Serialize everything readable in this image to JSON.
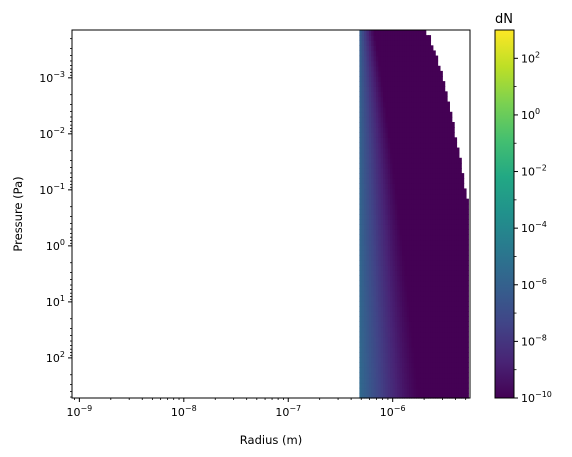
{
  "chart_data": {
    "type": "heatmap",
    "xlabel": "Radius (m)",
    "ylabel": "Pressure (Pa)",
    "x_scale": "log",
    "y_scale": "log",
    "y_inverted": true,
    "xlim": [
      8.5e-10,
      5.5e-06
    ],
    "ylim": [
      520,
      0.00014
    ],
    "x_ticks": [
      {
        "value": 1e-09,
        "base": "10",
        "exp": "−9"
      },
      {
        "value": 1e-08,
        "base": "10",
        "exp": "−8"
      },
      {
        "value": 1e-07,
        "base": "10",
        "exp": "−7"
      },
      {
        "value": 1e-06,
        "base": "10",
        "exp": "−6"
      }
    ],
    "y_ticks": [
      {
        "value": 0.001,
        "base": "10",
        "exp": "−3"
      },
      {
        "value": 0.01,
        "base": "10",
        "exp": "−2"
      },
      {
        "value": 0.1,
        "base": "10",
        "exp": "−1"
      },
      {
        "value": 1,
        "base": "10",
        "exp": "0"
      },
      {
        "value": 10,
        "base": "10",
        "exp": "1"
      },
      {
        "value": 100,
        "base": "10",
        "exp": "2"
      }
    ],
    "grid": false,
    "colormap": "viridis",
    "colorbar": {
      "title": "dN",
      "scale": "log",
      "range": [
        1e-10,
        1000
      ],
      "ticks": [
        {
          "value": 1e-10,
          "base": "10",
          "exp": "−10"
        },
        {
          "value": 1e-08,
          "base": "10",
          "exp": "−8"
        },
        {
          "value": 1e-06,
          "base": "10",
          "exp": "−6"
        },
        {
          "value": 0.0001,
          "base": "10",
          "exp": "−4"
        },
        {
          "value": 0.01,
          "base": "10",
          "exp": "−2"
        },
        {
          "value": 1,
          "base": "10",
          "exp": "0"
        },
        {
          "value": 100,
          "base": "10",
          "exp": "2"
        }
      ]
    },
    "data_region": {
      "radius_min": 4.8e-07,
      "radius_max": 5.3e-06,
      "pressure_range": [
        520,
        0.00014
      ],
      "dN_at_radius_min": 3e-06,
      "dN_falloff_radius_top": 7e-07,
      "dN_falloff_radius_bottom": 1.8e-06,
      "dN_floor": 1e-10,
      "upper_edge_profile": [
        {
          "radius": 2e-06,
          "pressure": 0.00014
        },
        {
          "radius": 2.25e-06,
          "pressure": 0.00018
        },
        {
          "radius": 2.5e-06,
          "pressure": 0.00035
        },
        {
          "radius": 2.8e-06,
          "pressure": 0.0006
        },
        {
          "radius": 3.1e-06,
          "pressure": 0.0013
        },
        {
          "radius": 3.5e-06,
          "pressure": 0.0033
        },
        {
          "radius": 3.9e-06,
          "pressure": 0.009
        },
        {
          "radius": 4.4e-06,
          "pressure": 0.028
        },
        {
          "radius": 4.9e-06,
          "pressure": 0.1
        },
        {
          "radius": 5.3e-06,
          "pressure": 0.2
        }
      ]
    }
  }
}
